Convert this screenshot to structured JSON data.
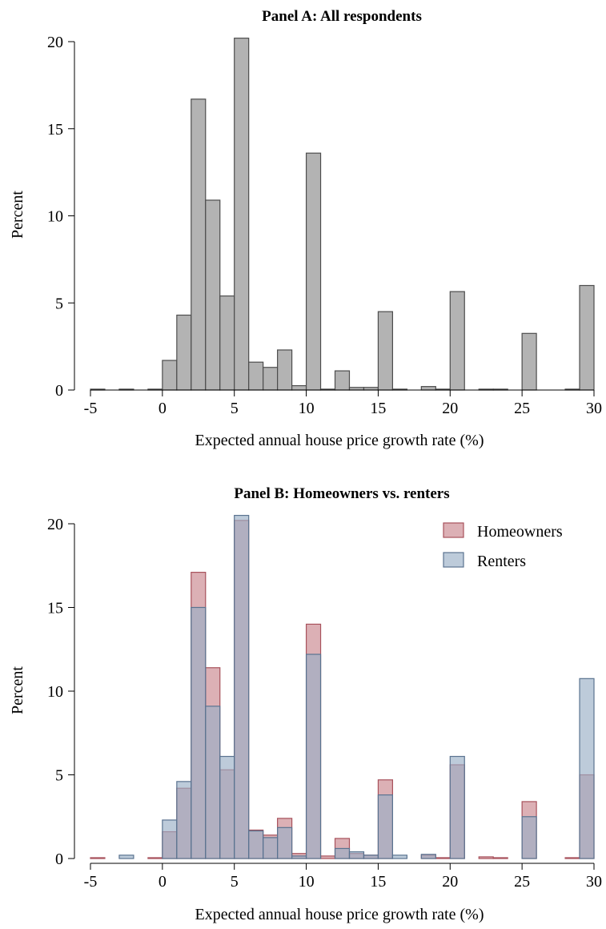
{
  "chart_data": [
    {
      "type": "bar",
      "title": "Panel A: All respondents",
      "xlabel": "Expected annual house price growth rate (%)",
      "ylabel": "Percent",
      "xlim": [
        -5,
        30
      ],
      "ylim": [
        0,
        20
      ],
      "xticks": [
        -5,
        0,
        5,
        10,
        15,
        20,
        25,
        30
      ],
      "yticks": [
        0,
        5,
        10,
        15,
        20
      ],
      "bin_width": 1,
      "grid": false,
      "colors": {
        "fill": "#b3b3b3",
        "stroke": "#4d4d4d"
      },
      "series": [
        {
          "bin_starts": [
            -5,
            -3,
            -1,
            0,
            1,
            2,
            3,
            4,
            5,
            6,
            7,
            8,
            9,
            10,
            11,
            12,
            13,
            14,
            15,
            16,
            18,
            19,
            20,
            22,
            23,
            25,
            28,
            29
          ],
          "values": [
            0.05,
            0.05,
            0.05,
            1.7,
            4.3,
            16.7,
            10.9,
            5.4,
            20.2,
            1.6,
            1.3,
            2.3,
            0.25,
            13.6,
            0.05,
            1.1,
            0.15,
            0.15,
            4.5,
            0.05,
            0.2,
            0.05,
            5.65,
            0.05,
            0.05,
            3.25,
            0.05,
            6.0
          ]
        }
      ]
    },
    {
      "type": "bar",
      "title": "Panel B: Homeowners vs. renters",
      "xlabel": "Expected annual house price growth rate (%)",
      "ylabel": "Percent",
      "xlim": [
        -5,
        30
      ],
      "ylim": [
        0,
        20
      ],
      "xticks": [
        -5,
        0,
        5,
        10,
        15,
        20,
        25,
        30
      ],
      "yticks": [
        0,
        5,
        10,
        15,
        20
      ],
      "bin_width": 1,
      "grid": false,
      "legend": "top-right",
      "series": [
        {
          "name": "Homeowners",
          "fill": "#c9868d",
          "stroke": "#a8525c",
          "bin_starts": [
            -5,
            -1,
            0,
            1,
            2,
            3,
            4,
            5,
            6,
            7,
            8,
            9,
            10,
            11,
            12,
            13,
            14,
            15,
            18,
            19,
            20,
            22,
            23,
            25,
            28,
            29
          ],
          "values": [
            0.05,
            0.05,
            1.6,
            4.2,
            17.1,
            11.4,
            5.3,
            20.2,
            1.7,
            1.4,
            2.4,
            0.3,
            14.0,
            0.15,
            1.2,
            0.3,
            0.2,
            4.7,
            0.2,
            0.05,
            5.6,
            0.1,
            0.05,
            3.4,
            0.05,
            5.0
          ]
        },
        {
          "name": "Renters",
          "fill": "#9aafc6",
          "stroke": "#5a7390",
          "bin_starts": [
            -3,
            0,
            1,
            2,
            3,
            4,
            5,
            6,
            7,
            8,
            9,
            10,
            12,
            13,
            14,
            15,
            16,
            18,
            20,
            25,
            29
          ],
          "values": [
            0.2,
            2.3,
            4.6,
            15.0,
            9.1,
            6.1,
            20.5,
            1.65,
            1.25,
            1.85,
            0.15,
            12.2,
            0.6,
            0.4,
            0.2,
            3.8,
            0.2,
            0.25,
            6.1,
            2.5,
            10.75
          ]
        }
      ]
    }
  ]
}
